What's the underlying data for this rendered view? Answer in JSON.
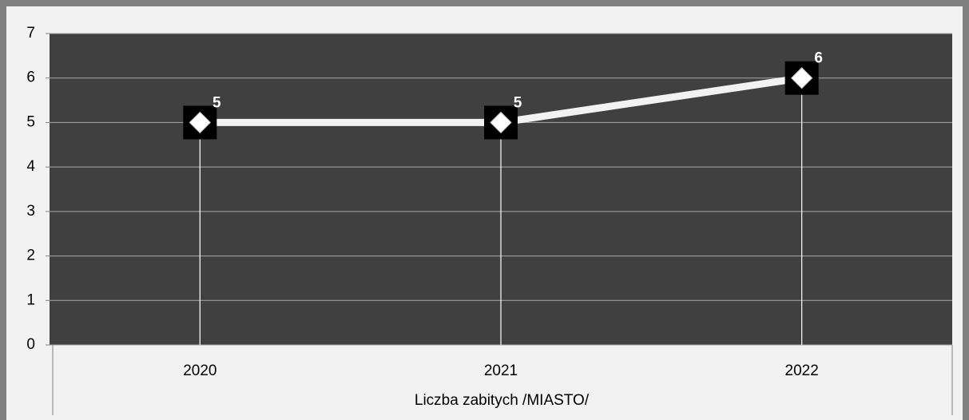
{
  "chart_data": {
    "type": "line",
    "x_label": "Liczba zabitych /MIASTO/",
    "categories": [
      "2020",
      "2021",
      "2022"
    ],
    "values": [
      5,
      5,
      6
    ],
    "color": "#f2f2f2",
    "plot_background": "#404040",
    "ylim": [
      0,
      7
    ],
    "yticks": [
      0,
      1,
      2,
      3,
      4,
      5,
      6,
      7
    ],
    "grid": true,
    "drop_lines": true
  }
}
